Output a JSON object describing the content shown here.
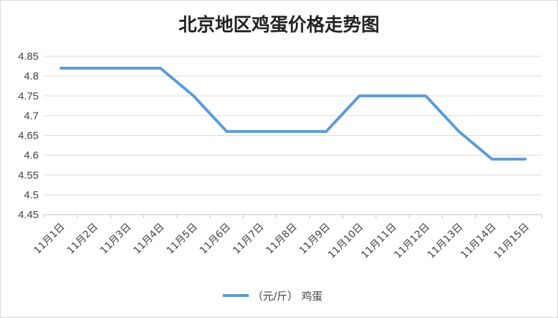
{
  "chart_data": {
    "type": "line",
    "title": "北京地区鸡蛋价格走势图",
    "categories": [
      "11月1日",
      "11月2日",
      "11月3日",
      "11月4日",
      "11月5日",
      "11月6日",
      "11月7日",
      "11月8日",
      "11月9日",
      "11月10日",
      "11月11日",
      "11月12日",
      "11月13日",
      "11月14日",
      "11月15日"
    ],
    "series": [
      {
        "name": "（元/斤） 鸡蛋",
        "color": "#5b9bd5",
        "values": [
          4.82,
          4.82,
          4.82,
          4.82,
          4.75,
          4.66,
          4.66,
          4.66,
          4.66,
          4.75,
          4.75,
          4.75,
          4.66,
          4.59,
          4.59
        ]
      }
    ],
    "ylim": [
      4.45,
      4.85
    ],
    "yticks": [
      "4.85",
      "4.8",
      "4.75",
      "4.7",
      "4.65",
      "4.6",
      "4.55",
      "4.5",
      "4.45"
    ],
    "xlabel": "",
    "ylabel": "",
    "grid": true,
    "legend_position": "bottom"
  }
}
